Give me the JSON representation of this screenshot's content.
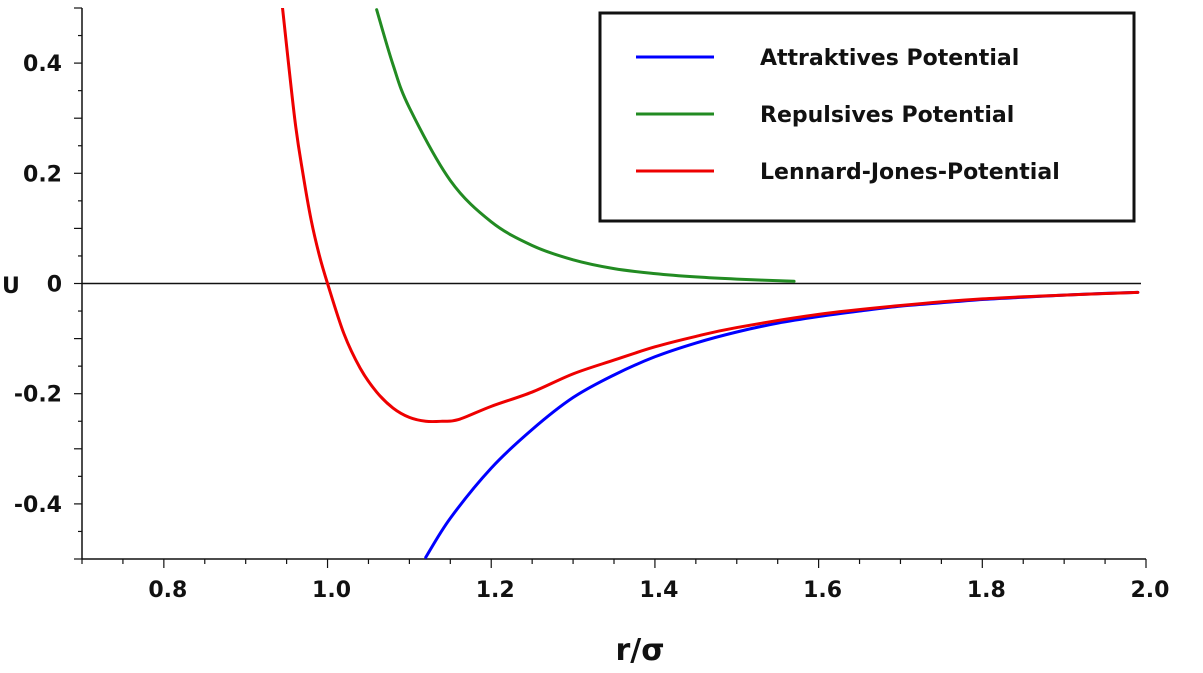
{
  "chart_data": {
    "type": "line",
    "title": "",
    "xlabel": "r/σ",
    "ylabel": "U",
    "xlim": [
      0.7,
      2.0
    ],
    "ylim": [
      -0.5,
      0.5
    ],
    "x_ticks": [
      {
        "value": 0.8,
        "label": "0.8"
      },
      {
        "value": 1.0,
        "label": "1.0"
      },
      {
        "value": 1.2,
        "label": "1.2"
      },
      {
        "value": 1.4,
        "label": "1.4"
      },
      {
        "value": 1.6,
        "label": "1.6"
      },
      {
        "value": 1.8,
        "label": "1.8"
      },
      {
        "value": 2.0,
        "label": "2.0"
      }
    ],
    "y_ticks": [
      {
        "value": 0.4,
        "label": "0.4"
      },
      {
        "value": 0.2,
        "label": "0.2"
      },
      {
        "value": 0.0,
        "label": "0"
      },
      {
        "value": -0.2,
        "label": "-0.2"
      },
      {
        "value": -0.4,
        "label": "-0.4"
      }
    ],
    "zero_line": true,
    "grid": false,
    "legend_position": "top-right",
    "series": [
      {
        "name": "Attraktives Potential",
        "color": "#0000ff",
        "x": [
          1.12,
          1.15,
          1.2,
          1.25,
          1.3,
          1.35,
          1.4,
          1.45,
          1.5,
          1.55,
          1.6,
          1.65,
          1.7,
          1.75,
          1.8,
          1.85,
          1.9,
          1.95,
          1.99
        ],
        "y": [
          -0.497,
          -0.426,
          -0.335,
          -0.265,
          -0.207,
          -0.166,
          -0.133,
          -0.108,
          -0.088,
          -0.072,
          -0.06,
          -0.05,
          -0.041,
          -0.035,
          -0.029,
          -0.025,
          -0.021,
          -0.018,
          -0.016
        ]
      },
      {
        "name": "Repulsives Potential",
        "color": "#228b22",
        "x": [
          1.06,
          1.08,
          1.1,
          1.15,
          1.2,
          1.25,
          1.3,
          1.35,
          1.4,
          1.45,
          1.5,
          1.57
        ],
        "y": [
          0.497,
          0.397,
          0.319,
          0.187,
          0.112,
          0.069,
          0.043,
          0.027,
          0.018,
          0.012,
          0.008,
          0.004
        ]
      },
      {
        "name": "Lennard-Jones-Potential",
        "color": "#ee0000",
        "x": [
          0.945,
          0.96,
          0.97,
          0.98,
          0.99,
          1.0,
          1.02,
          1.04,
          1.06,
          1.08,
          1.1,
          1.12,
          1.14,
          1.16,
          1.2,
          1.25,
          1.3,
          1.35,
          1.4,
          1.45,
          1.5,
          1.6,
          1.7,
          1.8,
          1.9,
          1.99
        ],
        "y": [
          0.5,
          0.298,
          0.199,
          0.115,
          0.051,
          0.0,
          -0.091,
          -0.154,
          -0.197,
          -0.226,
          -0.243,
          -0.25,
          -0.25,
          -0.247,
          -0.223,
          -0.197,
          -0.164,
          -0.139,
          -0.115,
          -0.096,
          -0.08,
          -0.056,
          -0.04,
          -0.028,
          -0.021,
          -0.016
        ]
      }
    ]
  }
}
